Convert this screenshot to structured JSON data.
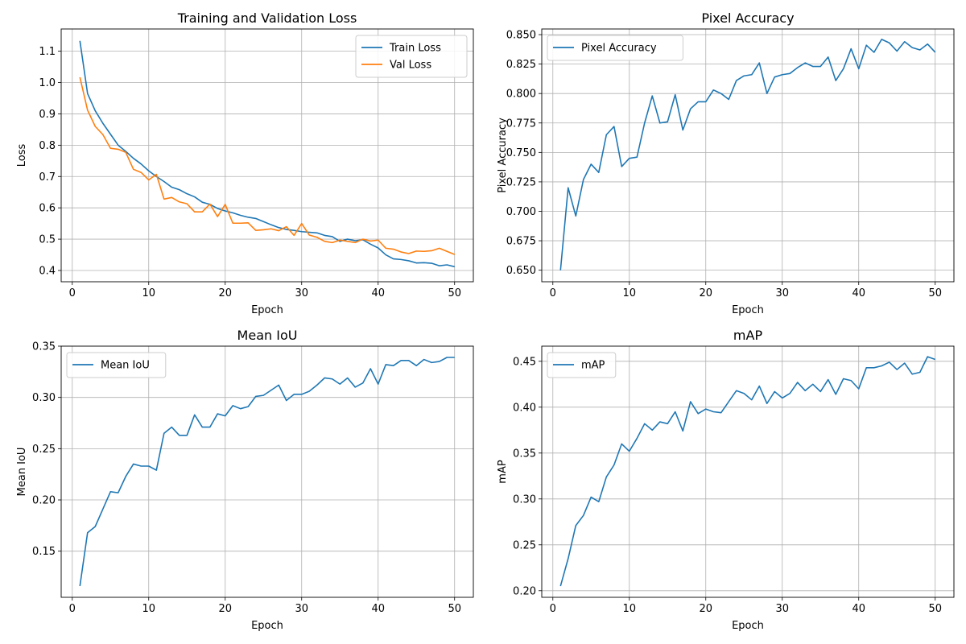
{
  "colors": {
    "blue": "#1f77b4",
    "orange": "#ff7f0e",
    "grid": "#b0b0b0",
    "axis": "#000000",
    "legend_border": "#cccccc"
  },
  "chart_data": [
    {
      "type": "line",
      "title": "Training and Validation Loss",
      "xlabel": "Epoch",
      "ylabel": "Loss",
      "grid": true,
      "legend_position": "top-right",
      "xlim": [
        -1.45,
        52.45
      ],
      "ylim": [
        0.364,
        1.171
      ],
      "xticks": [
        0,
        10,
        20,
        30,
        40,
        50
      ],
      "yticks": [
        0.4,
        0.5,
        0.6,
        0.7,
        0.8,
        0.9,
        1.0,
        1.1
      ],
      "ytick_labels": [
        "0.4",
        "0.5",
        "0.6",
        "0.7",
        "0.8",
        "0.9",
        "1.0",
        "1.1"
      ],
      "x": [
        1,
        2,
        3,
        4,
        5,
        6,
        7,
        8,
        9,
        10,
        11,
        12,
        13,
        14,
        15,
        16,
        17,
        18,
        19,
        20,
        21,
        22,
        23,
        24,
        25,
        26,
        27,
        28,
        29,
        30,
        31,
        32,
        33,
        34,
        35,
        36,
        37,
        38,
        39,
        40,
        41,
        42,
        43,
        44,
        45,
        46,
        47,
        48,
        49,
        50
      ],
      "series": [
        {
          "name": "Train Loss",
          "color": "#1f77b4",
          "values": [
            1.133,
            0.965,
            0.91,
            0.87,
            0.835,
            0.8,
            0.78,
            0.758,
            0.74,
            0.718,
            0.7,
            0.684,
            0.666,
            0.658,
            0.645,
            0.635,
            0.618,
            0.611,
            0.598,
            0.59,
            0.584,
            0.576,
            0.57,
            0.566,
            0.556,
            0.546,
            0.537,
            0.531,
            0.528,
            0.524,
            0.522,
            0.52,
            0.512,
            0.508,
            0.493,
            0.5,
            0.495,
            0.498,
            0.484,
            0.472,
            0.45,
            0.437,
            0.435,
            0.431,
            0.424,
            0.425,
            0.423,
            0.415,
            0.418,
            0.412
          ]
        },
        {
          "name": "Val Loss",
          "color": "#ff7f0e",
          "values": [
            1.017,
            0.912,
            0.86,
            0.834,
            0.79,
            0.787,
            0.777,
            0.723,
            0.713,
            0.689,
            0.707,
            0.628,
            0.633,
            0.619,
            0.613,
            0.587,
            0.587,
            0.612,
            0.572,
            0.611,
            0.551,
            0.551,
            0.552,
            0.528,
            0.53,
            0.533,
            0.527,
            0.54,
            0.512,
            0.55,
            0.513,
            0.506,
            0.493,
            0.489,
            0.497,
            0.493,
            0.489,
            0.5,
            0.494,
            0.497,
            0.471,
            0.468,
            0.459,
            0.454,
            0.462,
            0.461,
            0.463,
            0.471,
            0.461,
            0.451
          ]
        }
      ]
    },
    {
      "type": "line",
      "title": "Pixel Accuracy",
      "xlabel": "Epoch",
      "ylabel": "Pixel Accuracy",
      "grid": true,
      "legend_position": "top-left",
      "xlim": [
        -1.45,
        52.45
      ],
      "ylim": [
        0.6402,
        0.8548
      ],
      "xticks": [
        0,
        10,
        20,
        30,
        40,
        50
      ],
      "yticks": [
        0.65,
        0.675,
        0.7,
        0.725,
        0.75,
        0.775,
        0.8,
        0.825,
        0.85
      ],
      "ytick_labels": [
        "0.650",
        "0.675",
        "0.700",
        "0.725",
        "0.750",
        "0.775",
        "0.800",
        "0.825",
        "0.850"
      ],
      "x": [
        1,
        2,
        3,
        4,
        5,
        6,
        7,
        8,
        9,
        10,
        11,
        12,
        13,
        14,
        15,
        16,
        17,
        18,
        19,
        20,
        21,
        22,
        23,
        24,
        25,
        26,
        27,
        28,
        29,
        30,
        31,
        32,
        33,
        34,
        35,
        36,
        37,
        38,
        39,
        40,
        41,
        42,
        43,
        44,
        45,
        46,
        47,
        48,
        49,
        50
      ],
      "series": [
        {
          "name": "Pixel Accuracy",
          "color": "#1f77b4",
          "values": [
            0.65,
            0.72,
            0.696,
            0.727,
            0.74,
            0.733,
            0.765,
            0.772,
            0.738,
            0.745,
            0.746,
            0.775,
            0.798,
            0.775,
            0.776,
            0.799,
            0.769,
            0.787,
            0.793,
            0.793,
            0.803,
            0.8,
            0.795,
            0.811,
            0.815,
            0.816,
            0.826,
            0.8,
            0.814,
            0.816,
            0.817,
            0.822,
            0.826,
            0.823,
            0.823,
            0.831,
            0.811,
            0.821,
            0.838,
            0.821,
            0.841,
            0.835,
            0.846,
            0.843,
            0.836,
            0.844,
            0.839,
            0.837,
            0.842,
            0.835
          ]
        }
      ]
    },
    {
      "type": "line",
      "title": "Mean IoU",
      "xlabel": "Epoch",
      "ylabel": "Mean IoU",
      "grid": true,
      "legend_position": "top-left",
      "xlim": [
        -1.45,
        52.45
      ],
      "ylim": [
        0.105,
        0.35
      ],
      "xticks": [
        0,
        10,
        20,
        30,
        40,
        50
      ],
      "yticks": [
        0.15,
        0.2,
        0.25,
        0.3,
        0.35
      ],
      "ytick_labels": [
        "0.15",
        "0.20",
        "0.25",
        "0.30",
        "0.35"
      ],
      "x": [
        1,
        2,
        3,
        4,
        5,
        6,
        7,
        8,
        9,
        10,
        11,
        12,
        13,
        14,
        15,
        16,
        17,
        18,
        19,
        20,
        21,
        22,
        23,
        24,
        25,
        26,
        27,
        28,
        29,
        30,
        31,
        32,
        33,
        34,
        35,
        36,
        37,
        38,
        39,
        40,
        41,
        42,
        43,
        44,
        45,
        46,
        47,
        48,
        49,
        50
      ],
      "series": [
        {
          "name": "Mean IoU",
          "color": "#1f77b4",
          "values": [
            0.116,
            0.168,
            0.174,
            0.191,
            0.208,
            0.207,
            0.223,
            0.235,
            0.233,
            0.233,
            0.229,
            0.265,
            0.271,
            0.263,
            0.263,
            0.283,
            0.271,
            0.271,
            0.284,
            0.282,
            0.292,
            0.289,
            0.291,
            0.301,
            0.302,
            0.307,
            0.312,
            0.297,
            0.303,
            0.303,
            0.306,
            0.312,
            0.319,
            0.318,
            0.313,
            0.319,
            0.31,
            0.314,
            0.328,
            0.313,
            0.332,
            0.331,
            0.336,
            0.336,
            0.331,
            0.337,
            0.334,
            0.335,
            0.339,
            0.339
          ]
        }
      ]
    },
    {
      "type": "line",
      "title": "mAP",
      "xlabel": "Epoch",
      "ylabel": "mAP",
      "grid": true,
      "legend_position": "top-left",
      "xlim": [
        -1.45,
        52.45
      ],
      "ylim": [
        0.1928,
        0.4665
      ],
      "xticks": [
        0,
        10,
        20,
        30,
        40,
        50
      ],
      "yticks": [
        0.2,
        0.25,
        0.3,
        0.35,
        0.4,
        0.45
      ],
      "ytick_labels": [
        "0.20",
        "0.25",
        "0.30",
        "0.35",
        "0.40",
        "0.45"
      ],
      "x": [
        1,
        2,
        3,
        4,
        5,
        6,
        7,
        8,
        9,
        10,
        11,
        12,
        13,
        14,
        15,
        16,
        17,
        18,
        19,
        20,
        21,
        22,
        23,
        24,
        25,
        26,
        27,
        28,
        29,
        30,
        31,
        32,
        33,
        34,
        35,
        36,
        37,
        38,
        39,
        40,
        41,
        42,
        43,
        44,
        45,
        46,
        47,
        48,
        49,
        50
      ],
      "series": [
        {
          "name": "mAP",
          "color": "#1f77b4",
          "values": [
            0.205,
            0.235,
            0.271,
            0.282,
            0.302,
            0.297,
            0.324,
            0.337,
            0.36,
            0.352,
            0.366,
            0.382,
            0.375,
            0.384,
            0.382,
            0.395,
            0.374,
            0.406,
            0.393,
            0.398,
            0.395,
            0.394,
            0.406,
            0.418,
            0.415,
            0.408,
            0.423,
            0.404,
            0.417,
            0.41,
            0.415,
            0.427,
            0.418,
            0.425,
            0.417,
            0.43,
            0.414,
            0.431,
            0.429,
            0.42,
            0.443,
            0.443,
            0.445,
            0.449,
            0.441,
            0.448,
            0.436,
            0.438,
            0.455,
            0.452
          ]
        }
      ]
    }
  ]
}
